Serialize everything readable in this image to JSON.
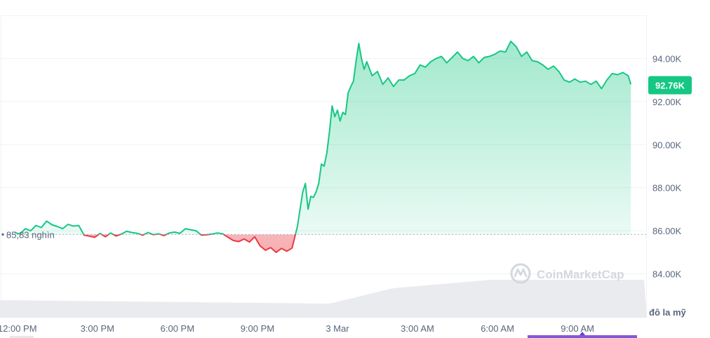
{
  "colors": {
    "up": "#16c784",
    "down": "#ea3943",
    "axis_text": "#58667e",
    "grid": "#eff2f5",
    "volume": "#e9ebef",
    "watermark": "#d3d7de",
    "nav_accent": "#6c3bd1"
  },
  "watermark": "CoinMarketCap",
  "unit_label": "đô la mỹ",
  "current_price_label": "92.76K",
  "baseline_label": "85,83 nghìn",
  "chart_data": {
    "type": "area",
    "title": "",
    "xlabel": "",
    "ylabel": "đô la mỹ",
    "baseline": 85.83,
    "current": 92.76,
    "ylim": [
      82.0,
      96.0
    ],
    "xlim": [
      -0.65,
      23.6
    ],
    "y_ticks": [
      {
        "label": "84.00K",
        "value": 84
      },
      {
        "label": "86.00K",
        "value": 86
      },
      {
        "label": "88.00K",
        "value": 88
      },
      {
        "label": "90.00K",
        "value": 90
      },
      {
        "label": "92.00K",
        "value": 92
      },
      {
        "label": "94.00K",
        "value": 94
      }
    ],
    "x_ticks": [
      {
        "label": "12:00 PM",
        "value": 0
      },
      {
        "label": "3:00 PM",
        "value": 3
      },
      {
        "label": "6:00 PM",
        "value": 6
      },
      {
        "label": "9:00 PM",
        "value": 9
      },
      {
        "label": "3 Mar",
        "value": 12
      },
      {
        "label": "3:00 AM",
        "value": 15
      },
      {
        "label": "6:00 AM",
        "value": 18
      },
      {
        "label": "9:00 AM",
        "value": 21
      }
    ],
    "series": [
      {
        "x": [
          -0.1,
          0.1,
          0.3,
          0.5,
          0.7,
          0.9,
          1.1,
          1.3,
          1.5,
          1.7,
          1.9,
          2.1,
          2.3,
          2.5,
          2.7,
          2.9,
          3.1,
          3.3,
          3.5,
          3.7,
          3.9,
          4.1,
          4.3,
          4.5,
          4.7,
          4.9,
          5.1,
          5.3,
          5.5,
          5.7,
          5.9,
          6.1,
          6.3,
          6.5,
          6.7,
          6.9,
          7.1,
          7.3,
          7.5,
          7.7,
          7.9,
          8.1,
          8.3,
          8.5,
          8.7,
          8.9,
          9.1,
          9.3,
          9.5,
          9.7,
          9.9,
          10.1,
          10.3,
          10.5,
          10.7,
          10.8,
          10.9,
          11.0,
          11.1,
          11.2,
          11.3,
          11.4,
          11.5,
          11.6,
          11.7,
          11.8,
          11.9,
          12.0,
          12.1,
          12.2,
          12.3,
          12.4,
          12.5,
          12.6,
          12.7,
          12.8,
          12.9,
          13.0,
          13.1,
          13.3,
          13.5,
          13.7,
          13.9,
          14.1,
          14.3,
          14.5,
          14.7,
          14.9,
          15.1,
          15.3,
          15.5,
          15.7,
          15.9,
          16.1,
          16.3,
          16.5,
          16.7,
          16.9,
          17.1,
          17.3,
          17.5,
          17.7,
          17.9,
          18.1,
          18.3,
          18.5,
          18.7,
          18.9,
          19.1,
          19.3,
          19.5,
          19.7,
          19.9,
          20.1,
          20.3,
          20.5,
          20.7,
          20.9,
          21.1,
          21.3,
          21.5,
          21.7,
          21.9,
          22.1,
          22.3,
          22.5,
          22.7,
          22.9,
          23.0
        ],
        "values": [
          85.92,
          85.85,
          86.1,
          86.0,
          86.25,
          86.15,
          86.45,
          86.28,
          86.2,
          86.1,
          86.3,
          86.22,
          86.25,
          85.8,
          85.75,
          85.7,
          85.88,
          85.72,
          85.9,
          85.76,
          85.85,
          85.98,
          85.92,
          85.88,
          85.8,
          85.92,
          85.82,
          85.86,
          85.78,
          85.9,
          85.94,
          85.88,
          86.1,
          86.05,
          86.0,
          85.8,
          85.82,
          85.85,
          85.9,
          85.86,
          85.7,
          85.55,
          85.5,
          85.62,
          85.48,
          85.72,
          85.3,
          85.1,
          85.22,
          85.0,
          85.18,
          85.05,
          85.2,
          86.2,
          87.8,
          88.2,
          87.0,
          87.6,
          87.55,
          87.8,
          88.2,
          89.1,
          89.0,
          89.6,
          90.6,
          91.8,
          91.3,
          91.6,
          91.1,
          91.5,
          91.4,
          92.4,
          92.7,
          92.95,
          93.9,
          94.7,
          94.0,
          93.5,
          93.85,
          93.2,
          93.4,
          92.8,
          93.1,
          92.7,
          93.0,
          93.0,
          93.2,
          93.3,
          93.7,
          93.6,
          93.85,
          94.0,
          94.1,
          93.8,
          94.05,
          94.3,
          94.0,
          93.9,
          94.1,
          93.8,
          94.05,
          94.1,
          94.2,
          94.35,
          94.3,
          94.8,
          94.55,
          94.1,
          94.3,
          93.9,
          93.85,
          93.7,
          93.5,
          93.65,
          93.4,
          93.0,
          92.9,
          93.05,
          92.9,
          92.95,
          92.8,
          92.95,
          92.6,
          93.0,
          93.3,
          93.25,
          93.35,
          93.2,
          92.8
        ]
      }
    ]
  }
}
